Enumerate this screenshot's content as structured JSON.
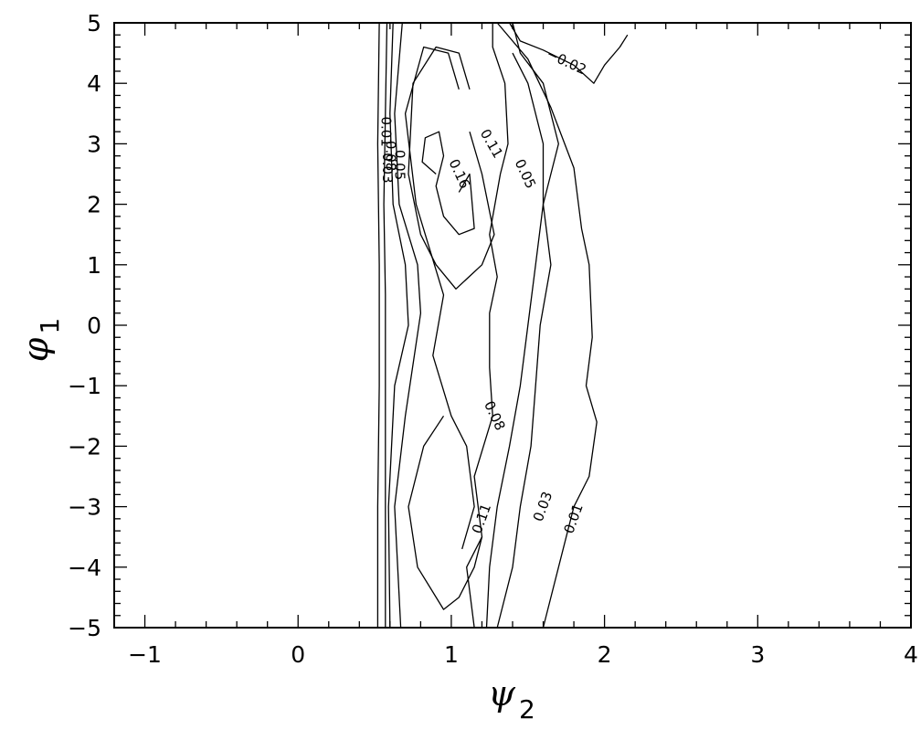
{
  "chart_data": {
    "type": "contour",
    "xlabel": {
      "symbol": "ψ",
      "subscript": "2"
    },
    "ylabel": {
      "symbol": "φ",
      "subscript": "1"
    },
    "xlim": [
      -1.2,
      4
    ],
    "ylim": [
      -5,
      5
    ],
    "x_ticks": [
      {
        "value": -1,
        "label": "−1"
      },
      {
        "value": 0,
        "label": "0"
      },
      {
        "value": 1,
        "label": "1"
      },
      {
        "value": 2,
        "label": "2"
      },
      {
        "value": 3,
        "label": "3"
      },
      {
        "value": 4,
        "label": "4"
      }
    ],
    "y_ticks": [
      {
        "value": 5,
        "label": "5"
      },
      {
        "value": 4,
        "label": "4"
      },
      {
        "value": 3,
        "label": "3"
      },
      {
        "value": 2,
        "label": "2"
      },
      {
        "value": 1,
        "label": "1"
      },
      {
        "value": 0,
        "label": "0"
      },
      {
        "value": -1,
        "label": "−1"
      },
      {
        "value": -2,
        "label": "−2"
      },
      {
        "value": -3,
        "label": "−3"
      },
      {
        "value": -4,
        "label": "−4"
      },
      {
        "value": -5,
        "label": "−5"
      }
    ],
    "grid": false,
    "contours": [
      {
        "level": "0.01",
        "points": [
          [
            0.52,
            -5
          ],
          [
            0.52,
            -3
          ],
          [
            0.53,
            -1
          ],
          [
            0.53,
            1
          ],
          [
            0.52,
            3
          ],
          [
            0.53,
            5
          ]
        ]
      },
      {
        "level": "0.03",
        "points": [
          [
            0.57,
            -5
          ],
          [
            0.57,
            -3
          ],
          [
            0.57,
            -1
          ],
          [
            0.57,
            0.5
          ],
          [
            0.56,
            2
          ],
          [
            0.57,
            3.5
          ],
          [
            0.58,
            5
          ]
        ]
      },
      {
        "level": "0.05",
        "points": [
          [
            0.6,
            -5
          ],
          [
            0.59,
            -3
          ],
          [
            0.63,
            -1
          ],
          [
            0.72,
            0
          ],
          [
            0.7,
            1
          ],
          [
            0.62,
            2
          ],
          [
            0.6,
            3.5
          ],
          [
            0.62,
            5
          ]
        ]
      },
      {
        "level": "0.08",
        "points": [
          [
            0.67,
            -5
          ],
          [
            0.63,
            -3
          ],
          [
            0.7,
            -1.5
          ],
          [
            0.8,
            0.2
          ],
          [
            0.78,
            1
          ],
          [
            0.66,
            2
          ],
          [
            0.63,
            3.5
          ],
          [
            0.68,
            5
          ]
        ]
      },
      {
        "level": "0.11",
        "points": [
          [
            1.07,
            -3.7
          ],
          [
            1.15,
            -3
          ],
          [
            1.1,
            -2
          ],
          [
            1,
            -1.5
          ],
          [
            0.88,
            -0.5
          ],
          [
            0.95,
            0.5
          ],
          [
            0.77,
            2
          ],
          [
            0.7,
            3.5
          ],
          [
            0.82,
            4.6
          ],
          [
            0.98,
            4.5
          ],
          [
            1.05,
            3.9
          ]
        ]
      },
      {
        "level": "0.11",
        "points": [
          [
            1.12,
            3.2
          ],
          [
            1.2,
            2.5
          ],
          [
            1.28,
            1.5
          ],
          [
            1.2,
            1
          ],
          [
            1.03,
            0.6
          ],
          [
            0.9,
            1
          ],
          [
            0.8,
            1.5
          ],
          [
            0.72,
            2.5
          ],
          [
            0.75,
            4
          ],
          [
            0.9,
            4.6
          ],
          [
            1.05,
            4.5
          ],
          [
            1.12,
            3.9
          ]
        ]
      },
      {
        "level": "0.11",
        "points": [
          [
            0.95,
            -1.5
          ],
          [
            0.82,
            -2
          ],
          [
            0.72,
            -3
          ],
          [
            0.78,
            -4
          ],
          [
            0.95,
            -4.7
          ],
          [
            1.05,
            -4.5
          ],
          [
            1.15,
            -4
          ],
          [
            1.2,
            -3.5
          ]
        ]
      },
      {
        "level": "0.16",
        "points": [
          [
            1.05,
            2.2
          ],
          [
            1.12,
            2.5
          ],
          [
            1.15,
            1.6
          ],
          [
            1.05,
            1.5
          ],
          [
            0.95,
            1.8
          ],
          [
            0.9,
            2.3
          ],
          [
            0.95,
            2.8
          ],
          [
            0.92,
            3.2
          ],
          [
            0.83,
            3.1
          ],
          [
            0.81,
            2.7
          ],
          [
            0.9,
            2.5
          ]
        ]
      },
      {
        "level": "0.08",
        "points": [
          [
            1.27,
            5
          ],
          [
            1.27,
            4.6
          ],
          [
            1.35,
            4
          ],
          [
            1.37,
            3
          ],
          [
            1.32,
            2.5
          ],
          [
            1.25,
            1.5
          ],
          [
            1.3,
            0.8
          ],
          [
            1.25,
            0.2
          ],
          [
            1.25,
            -0.7
          ],
          [
            1.27,
            -1.5
          ],
          [
            1.15,
            -2.5
          ],
          [
            1.2,
            -3.5
          ],
          [
            1.1,
            -4
          ],
          [
            1.15,
            -5
          ]
        ]
      },
      {
        "level": "0.05",
        "points": [
          [
            1.4,
            5
          ],
          [
            1.45,
            4.5
          ],
          [
            1.6,
            4
          ],
          [
            1.7,
            3
          ],
          [
            1.6,
            2
          ],
          [
            1.55,
            1
          ],
          [
            1.5,
            0
          ],
          [
            1.45,
            -1
          ],
          [
            1.38,
            -2
          ],
          [
            1.3,
            -3
          ],
          [
            1.25,
            -4
          ],
          [
            1.23,
            -5
          ]
        ]
      },
      {
        "level": "0.03",
        "points": [
          [
            1.4,
            4.5
          ],
          [
            1.5,
            4
          ],
          [
            1.6,
            3
          ],
          [
            1.6,
            2
          ],
          [
            1.65,
            1
          ],
          [
            1.58,
            0
          ],
          [
            1.55,
            -1
          ],
          [
            1.52,
            -2
          ],
          [
            1.45,
            -3
          ],
          [
            1.4,
            -4
          ],
          [
            1.3,
            -5
          ]
        ]
      },
      {
        "level": "0.01",
        "points": [
          [
            1.3,
            5
          ],
          [
            1.5,
            4.4
          ],
          [
            1.65,
            3.6
          ],
          [
            1.8,
            2.6
          ],
          [
            1.85,
            1.6
          ],
          [
            1.9,
            1
          ],
          [
            1.92,
            -0.2
          ],
          [
            1.88,
            -1
          ],
          [
            1.95,
            -1.6
          ],
          [
            1.9,
            -2.5
          ],
          [
            1.8,
            -3
          ],
          [
            1.7,
            -4
          ],
          [
            1.6,
            -5
          ]
        ]
      },
      {
        "level": "−0.02",
        "points": [
          [
            1.38,
            5
          ],
          [
            1.45,
            4.7
          ],
          [
            1.6,
            4.55
          ],
          [
            1.8,
            4.3
          ],
          [
            1.93,
            4
          ],
          [
            2,
            4.3
          ],
          [
            2.1,
            4.6
          ],
          [
            2.15,
            4.8
          ]
        ]
      }
    ],
    "contour_labels": [
      {
        "text": "−0.02",
        "x": 1.75,
        "y": 4.35,
        "rotation": 25
      },
      {
        "text": "0.01",
        "x": 0.57,
        "y": 3.2,
        "rotation": 90
      },
      {
        "text": "0.03",
        "x": 0.58,
        "y": 2.6,
        "rotation": 90
      },
      {
        "text": "0.05",
        "x": 0.66,
        "y": 2.65,
        "rotation": 90
      },
      {
        "text": "0.08",
        "x": 0.6,
        "y": 2.8,
        "rotation": 90
      },
      {
        "text": "0.16",
        "x": 1.05,
        "y": 2.5,
        "rotation": 65
      },
      {
        "text": "0.11",
        "x": 1.26,
        "y": 3.0,
        "rotation": 60
      },
      {
        "text": "0.05",
        "x": 1.48,
        "y": 2.5,
        "rotation": 65
      },
      {
        "text": "0.08",
        "x": 1.28,
        "y": -1.5,
        "rotation": 65
      },
      {
        "text": "0.11",
        "x": 1.2,
        "y": -3.2,
        "rotation": -70
      },
      {
        "text": "0.03",
        "x": 1.6,
        "y": -3.0,
        "rotation": -70
      },
      {
        "text": "0.01",
        "x": 1.8,
        "y": -3.2,
        "rotation": -70
      }
    ]
  }
}
